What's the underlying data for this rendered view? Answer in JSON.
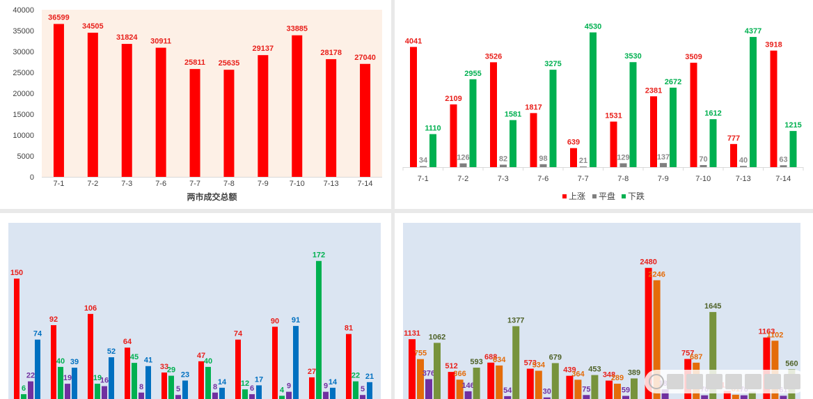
{
  "chart_data": [
    {
      "type": "bar",
      "categories": [
        "7-1",
        "7-2",
        "7-3",
        "7-6",
        "7-7",
        "7-8",
        "7-9",
        "7-10",
        "7-13",
        "7-14"
      ],
      "series": [
        {
          "values": [
            36599,
            34505,
            31824,
            30911,
            25811,
            25635,
            29137,
            33885,
            28178,
            27040
          ]
        }
      ],
      "xlabel": "两市成交总额",
      "ylim": [
        0,
        40000
      ],
      "yticks": [
        0,
        5000,
        10000,
        15000,
        20000,
        25000,
        30000,
        35000,
        40000
      ],
      "colors": {
        "bar": "#ff0000",
        "label": "#e8201b",
        "plot_bg": "#fdf0e6"
      }
    },
    {
      "type": "bar",
      "categories": [
        "7-1",
        "7-2",
        "7-3",
        "7-6",
        "7-7",
        "7-8",
        "7-9",
        "7-10",
        "7-13",
        "7-14"
      ],
      "series": [
        {
          "name": "上涨",
          "values": [
            4041,
            2109,
            3526,
            1817,
            639,
            1531,
            2381,
            3509,
            777,
            3918
          ],
          "color": "#ff0000",
          "label_color": "#e8201b"
        },
        {
          "name": "平盘",
          "values": [
            34,
            126,
            82,
            98,
            21,
            129,
            137,
            70,
            40,
            63
          ],
          "color": "#7f7f7f",
          "label_color": "#8c8c8c"
        },
        {
          "name": "下跌",
          "values": [
            1110,
            2955,
            1581,
            3275,
            4530,
            3530,
            2672,
            1612,
            4377,
            1215
          ],
          "color": "#00b050",
          "label_color": "#00b050"
        }
      ],
      "ylim": [
        0,
        4800
      ],
      "legend": "bottom",
      "colors": {
        "plot_bg": "#ffffff"
      }
    },
    {
      "type": "bar",
      "categories": [
        "",
        "",
        "",
        "",
        "",
        "",
        "",
        "",
        "",
        ""
      ],
      "series": [
        {
          "values": [
            150,
            92,
            106,
            64,
            33,
            47,
            74,
            90,
            27,
            81
          ],
          "color": "#ff0000",
          "label_color": "#e8201b"
        },
        {
          "values": [
            6,
            40,
            19,
            45,
            29,
            40,
            12,
            4,
            172,
            22
          ],
          "color": "#00b050",
          "label_color": "#00b050"
        },
        {
          "values": [
            22,
            19,
            16,
            8,
            5,
            8,
            6,
            9,
            9,
            5
          ],
          "color": "#7030a0",
          "label_color": "#7030a0"
        },
        {
          "values": [
            74,
            39,
            52,
            41,
            23,
            14,
            17,
            91,
            14,
            21
          ],
          "color": "#0070c0",
          "label_color": "#0070c0"
        }
      ],
      "ylim": [
        0,
        190
      ],
      "colors": {
        "plot_bg": "#dbe5f2"
      }
    },
    {
      "type": "bar",
      "categories": [
        "",
        "",
        "",
        "",
        "",
        "",
        "",
        "",
        "",
        ""
      ],
      "series": [
        {
          "values": [
            1131,
            512,
            688,
            573,
            439,
            348,
            2480,
            757,
            151,
            1163
          ],
          "color": "#ff0000",
          "label_color": "#e8201b"
        },
        {
          "values": [
            755,
            366,
            634,
            534,
            364,
            289,
            2246,
            687,
            81,
            1102
          ],
          "color": "#e46c0a",
          "label_color": "#e46c0a"
        },
        {
          "values": [
            376,
            146,
            54,
            30,
            75,
            59,
            183,
            70,
            70,
            61
          ],
          "color": "#7030a0",
          "label_color": "#7030a0"
        },
        {
          "values": [
            1062,
            593,
            1377,
            679,
            453,
            389,
            null,
            1645,
            137,
            560
          ],
          "color": "#77933c",
          "label_color": "#4f6228"
        }
      ],
      "ylim": [
        0,
        2700
      ],
      "colors": {
        "plot_bg": "#dbe5f2"
      }
    }
  ]
}
